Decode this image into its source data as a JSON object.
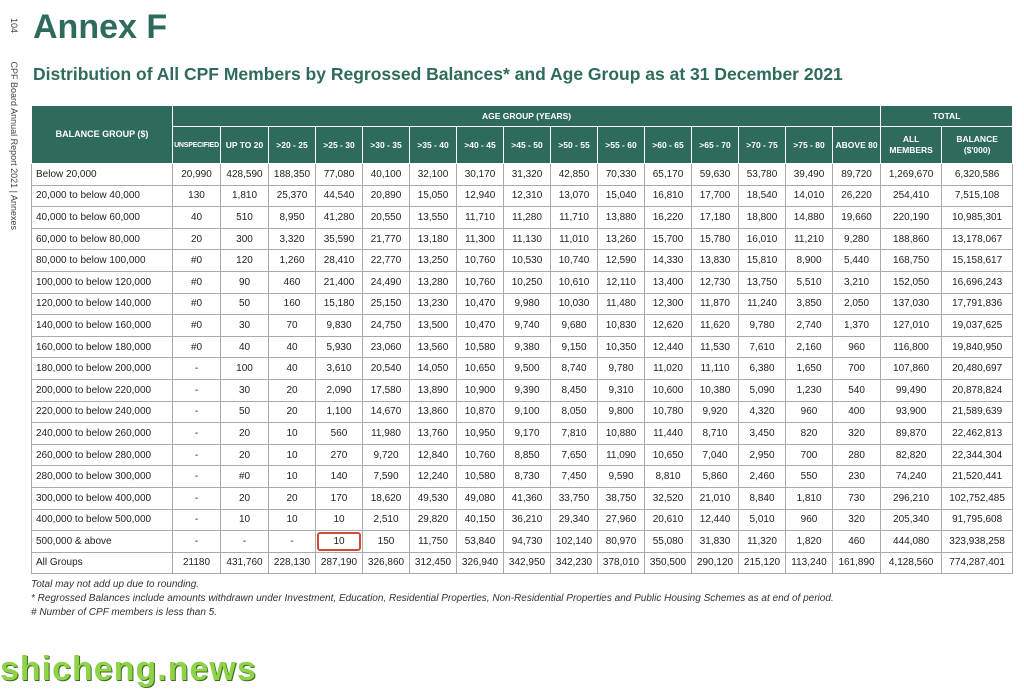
{
  "side": {
    "page_number": "104",
    "label": "CPF Board Annual Report 2021  |  Annexes"
  },
  "title": "Annex F",
  "subtitle": "Distribution of All CPF Members by Regrossed Balances* and Age Group as at 31 December 2021",
  "table": {
    "header_balance_group": "BALANCE GROUP ($)",
    "header_age_group": "AGE GROUP (YEARS)",
    "header_total": "TOTAL",
    "age_columns": [
      "UNSPECIFIED",
      "UP TO 20",
      ">20 - 25",
      ">25 - 30",
      ">30 - 35",
      ">35 - 40",
      ">40 - 45",
      ">45 - 50",
      ">50 - 55",
      ">55 - 60",
      ">60 - 65",
      ">65 - 70",
      ">70 - 75",
      ">75 - 80",
      "ABOVE 80"
    ],
    "total_columns": [
      "ALL MEMBERS",
      "BALANCE ($'000)"
    ],
    "rows": [
      {
        "label": "Below 20,000",
        "cells": [
          "20,990",
          "428,590",
          "188,350",
          "77,080",
          "40,100",
          "32,100",
          "30,170",
          "31,320",
          "42,850",
          "70,330",
          "65,170",
          "59,630",
          "53,780",
          "39,490",
          "89,720",
          "1,269,670",
          "6,320,586"
        ]
      },
      {
        "label": "20,000 to below 40,000",
        "cells": [
          "130",
          "1,810",
          "25,370",
          "44,540",
          "20,890",
          "15,050",
          "12,940",
          "12,310",
          "13,070",
          "15,040",
          "16,810",
          "17,700",
          "18,540",
          "14,010",
          "26,220",
          "254,410",
          "7,515,108"
        ]
      },
      {
        "label": "40,000 to below 60,000",
        "cells": [
          "40",
          "510",
          "8,950",
          "41,280",
          "20,550",
          "13,550",
          "11,710",
          "11,280",
          "11,710",
          "13,880",
          "16,220",
          "17,180",
          "18,800",
          "14,880",
          "19,660",
          "220,190",
          "10,985,301"
        ]
      },
      {
        "label": "60,000 to below 80,000",
        "cells": [
          "20",
          "300",
          "3,320",
          "35,590",
          "21,770",
          "13,180",
          "11,300",
          "11,130",
          "11,010",
          "13,260",
          "15,700",
          "15,780",
          "16,010",
          "11,210",
          "9,280",
          "188,860",
          "13,178,067"
        ]
      },
      {
        "label": "80,000 to below 100,000",
        "cells": [
          "#0",
          "120",
          "1,260",
          "28,410",
          "22,770",
          "13,250",
          "10,760",
          "10,530",
          "10,740",
          "12,590",
          "14,330",
          "13,830",
          "15,810",
          "8,900",
          "5,440",
          "168,750",
          "15,158,617"
        ]
      },
      {
        "label": "100,000 to below 120,000",
        "cells": [
          "#0",
          "90",
          "460",
          "21,400",
          "24,490",
          "13,280",
          "10,760",
          "10,250",
          "10,610",
          "12,110",
          "13,400",
          "12,730",
          "13,750",
          "5,510",
          "3,210",
          "152,050",
          "16,696,243"
        ]
      },
      {
        "label": "120,000 to below 140,000",
        "cells": [
          "#0",
          "50",
          "160",
          "15,180",
          "25,150",
          "13,230",
          "10,470",
          "9,980",
          "10,030",
          "11,480",
          "12,300",
          "11,870",
          "11,240",
          "3,850",
          "2,050",
          "137,030",
          "17,791,836"
        ]
      },
      {
        "label": "140,000 to below 160,000",
        "cells": [
          "#0",
          "30",
          "70",
          "9,830",
          "24,750",
          "13,500",
          "10,470",
          "9,740",
          "9,680",
          "10,830",
          "12,620",
          "11,620",
          "9,780",
          "2,740",
          "1,370",
          "127,010",
          "19,037,625"
        ]
      },
      {
        "label": "160,000 to below 180,000",
        "cells": [
          "#0",
          "40",
          "40",
          "5,930",
          "23,060",
          "13,560",
          "10,580",
          "9,380",
          "9,150",
          "10,350",
          "12,440",
          "11,530",
          "7,610",
          "2,160",
          "960",
          "116,800",
          "19,840,950"
        ]
      },
      {
        "label": "180,000 to below 200,000",
        "cells": [
          "-",
          "100",
          "40",
          "3,610",
          "20,540",
          "14,050",
          "10,650",
          "9,500",
          "8,740",
          "9,780",
          "11,020",
          "11,110",
          "6,380",
          "1,650",
          "700",
          "107,860",
          "20,480,697"
        ]
      },
      {
        "label": "200,000 to below 220,000",
        "cells": [
          "-",
          "30",
          "20",
          "2,090",
          "17,580",
          "13,890",
          "10,900",
          "9,390",
          "8,450",
          "9,310",
          "10,600",
          "10,380",
          "5,090",
          "1,230",
          "540",
          "99,490",
          "20,878,824"
        ]
      },
      {
        "label": "220,000 to below 240,000",
        "cells": [
          "-",
          "50",
          "20",
          "1,100",
          "14,670",
          "13,860",
          "10,870",
          "9,100",
          "8,050",
          "9,800",
          "10,780",
          "9,920",
          "4,320",
          "960",
          "400",
          "93,900",
          "21,589,639"
        ]
      },
      {
        "label": "240,000 to below 260,000",
        "cells": [
          "-",
          "20",
          "10",
          "560",
          "11,980",
          "13,760",
          "10,950",
          "9,170",
          "7,810",
          "10,880",
          "11,440",
          "8,710",
          "3,450",
          "820",
          "320",
          "89,870",
          "22,462,813"
        ]
      },
      {
        "label": "260,000 to below 280,000",
        "cells": [
          "-",
          "20",
          "10",
          "270",
          "9,720",
          "12,840",
          "10,760",
          "8,850",
          "7,650",
          "11,090",
          "10,650",
          "7,040",
          "2,950",
          "700",
          "280",
          "82,820",
          "22,344,304"
        ]
      },
      {
        "label": "280,000 to below 300,000",
        "cells": [
          "-",
          "#0",
          "10",
          "140",
          "7,590",
          "12,240",
          "10,580",
          "8,730",
          "7,450",
          "9,590",
          "8,810",
          "5,860",
          "2,460",
          "550",
          "230",
          "74,240",
          "21,520,441"
        ]
      },
      {
        "label": "300,000 to below 400,000",
        "cells": [
          "-",
          "20",
          "20",
          "170",
          "18,620",
          "49,530",
          "49,080",
          "41,360",
          "33,750",
          "38,750",
          "32,520",
          "21,010",
          "8,840",
          "1,810",
          "730",
          "296,210",
          "102,752,485"
        ]
      },
      {
        "label": "400,000 to below 500,000",
        "cells": [
          "-",
          "10",
          "10",
          "10",
          "2,510",
          "29,820",
          "40,150",
          "36,210",
          "29,340",
          "27,960",
          "20,610",
          "12,440",
          "5,010",
          "960",
          "320",
          "205,340",
          "91,795,608"
        ]
      },
      {
        "label": "500,000 & above",
        "cells": [
          "-",
          "-",
          "-",
          "10",
          "150",
          "11,750",
          "53,840",
          "94,730",
          "102,140",
          "80,970",
          "55,080",
          "31,830",
          "11,320",
          "1,820",
          "460",
          "444,080",
          "323,938,258"
        ]
      },
      {
        "label": "All Groups",
        "cells": [
          "21180",
          "431,760",
          "228,130",
          "287,190",
          "326,860",
          "312,450",
          "326,940",
          "342,950",
          "342,230",
          "378,010",
          "350,500",
          "290,120",
          "215,120",
          "113,240",
          "161,890",
          "4,128,560",
          "774,287,401"
        ]
      }
    ]
  },
  "notes": [
    "Total may not add up due to rounding.",
    "* Regrossed Balances include amounts withdrawn under Investment, Education, Residential Properties, Non-Residential Properties and Public Housing Schemes as at end of period.",
    "#  Number of CPF members is less than 5."
  ],
  "watermark": "shicheng.news",
  "colors": {
    "header_bg": "#2f6b5d",
    "title": "#2f6b5d",
    "highlight_box": "#d04a3a",
    "watermark": "#8fd34a"
  }
}
